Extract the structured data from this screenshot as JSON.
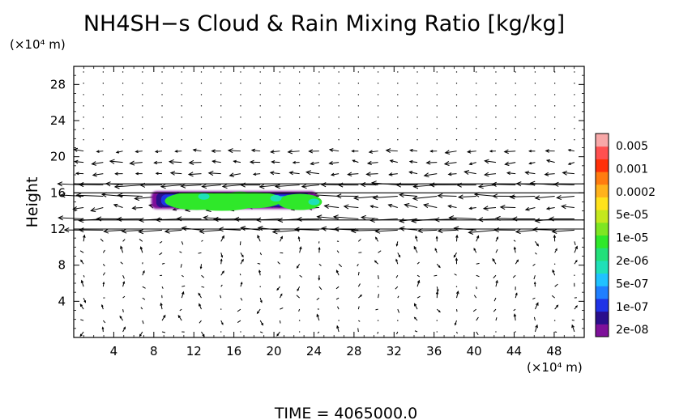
{
  "chart_data": {
    "type": "contour",
    "title": "NH4SH−s Cloud & Rain Mixing Ratio [kg/kg]",
    "ylabel": "Height",
    "xunit": "(×10⁴ m)",
    "yunit": "(×10⁴ m)",
    "xlim": [
      0,
      51
    ],
    "ylim": [
      0,
      30
    ],
    "xticks": [
      4,
      8,
      12,
      16,
      20,
      24,
      28,
      32,
      36,
      40,
      44,
      48
    ],
    "yticks": [
      4,
      8,
      12,
      16,
      20,
      24,
      28
    ],
    "colorbar": {
      "labels": [
        "0.005",
        "0.001",
        "0.0002",
        "5e-05",
        "1e-05",
        "2e-06",
        "5e-07",
        "1e-07",
        "2e-08"
      ],
      "colors": [
        "#7e119a",
        "#2a0f8c",
        "#1f33e6",
        "#1f7fff",
        "#1fc2ff",
        "#1fe0b8",
        "#22e07a",
        "#2fe82a",
        "#7ee622",
        "#c4e81e",
        "#ffe21c",
        "#ffb21c",
        "#ff7c10",
        "#ff3008",
        "#ff5050",
        "#f8a8a8"
      ]
    },
    "cloud": {
      "x_range": [
        8,
        24
      ],
      "y_range": [
        14.5,
        16
      ]
    },
    "flow": {
      "strong_bands_y": [
        12,
        13,
        16,
        17
      ],
      "direction": "westward"
    },
    "footer": "TIME  =  4065000.0"
  }
}
